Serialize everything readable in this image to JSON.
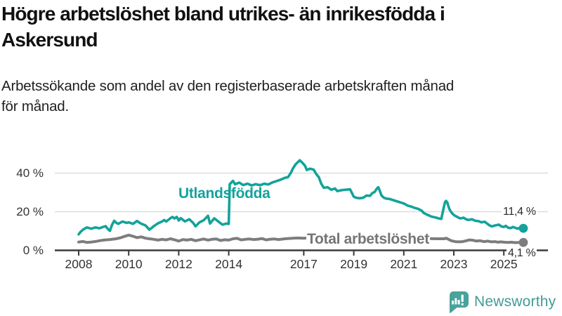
{
  "header": {
    "title": "Högre arbetslöshet bland utrikes- än inrikesfödda i\nAskersund",
    "subtitle": "Arbetssökande som andel av den registerbaserade arbetskraften månad\nför månad."
  },
  "footer": {
    "brand": "Newsworthy",
    "logo_icon": "bar-chart-speech-bubble-icon"
  },
  "colors": {
    "series_foreign": "#13a39a",
    "series_total": "#7d7d7d",
    "axis": "#3a3a3a",
    "grid": "#dcdcdc",
    "brand_teal": "#4aa29b"
  },
  "chart_data": {
    "type": "line",
    "title": "Högre arbetslöshet bland utrikes- än inrikesfödda i Askersund",
    "subtitle": "Arbetssökande som andel av den registerbaserade arbetskraften månad för månad.",
    "unit": "%",
    "grid": "horizontal-only",
    "legend_position": "inline-labels",
    "x_axis": {
      "ticks": [
        2008,
        2010,
        2012,
        2014,
        2017,
        2019,
        2021,
        2023,
        2025
      ],
      "tick_labels": [
        "2008",
        "2010",
        "2012",
        "2014",
        "2017",
        "2019",
        "2021",
        "2023",
        "2025"
      ],
      "range": [
        2007.1,
        2026.8
      ]
    },
    "y_axis": {
      "ticks": [
        0,
        20,
        40
      ],
      "tick_labels": [
        "0 %",
        "20 %",
        "40 %"
      ],
      "range": [
        0,
        51
      ]
    },
    "series": [
      {
        "name": "Utlandsfödda",
        "color": "#13a39a",
        "end_label": "11,4 %",
        "end_value": 11.4,
        "points": [
          [
            2008.0,
            8.3
          ],
          [
            2008.08,
            9.6
          ],
          [
            2008.17,
            10.7
          ],
          [
            2008.33,
            11.9
          ],
          [
            2008.5,
            11.2
          ],
          [
            2008.67,
            11.9
          ],
          [
            2008.83,
            11.4
          ],
          [
            2009.0,
            12.2
          ],
          [
            2009.08,
            12.5
          ],
          [
            2009.17,
            11.0
          ],
          [
            2009.25,
            10.1
          ],
          [
            2009.33,
            13.1
          ],
          [
            2009.42,
            15.3
          ],
          [
            2009.5,
            14.3
          ],
          [
            2009.58,
            13.7
          ],
          [
            2009.75,
            14.9
          ],
          [
            2009.92,
            14.2
          ],
          [
            2010.0,
            14.5
          ],
          [
            2010.17,
            13.7
          ],
          [
            2010.33,
            15.2
          ],
          [
            2010.5,
            13.8
          ],
          [
            2010.67,
            12.9
          ],
          [
            2010.83,
            10.7
          ],
          [
            2010.92,
            11.6
          ],
          [
            2011.0,
            12.5
          ],
          [
            2011.17,
            14.0
          ],
          [
            2011.33,
            14.9
          ],
          [
            2011.42,
            15.7
          ],
          [
            2011.5,
            14.9
          ],
          [
            2011.67,
            16.7
          ],
          [
            2011.75,
            17.3
          ],
          [
            2011.83,
            16.5
          ],
          [
            2011.92,
            17.3
          ],
          [
            2012.0,
            15.5
          ],
          [
            2012.08,
            16.7
          ],
          [
            2012.25,
            15.0
          ],
          [
            2012.42,
            16.1
          ],
          [
            2012.58,
            14.2
          ],
          [
            2012.67,
            12.4
          ],
          [
            2012.83,
            14.5
          ],
          [
            2013.0,
            15.6
          ],
          [
            2013.17,
            17.9
          ],
          [
            2013.25,
            13.9
          ],
          [
            2013.42,
            16.6
          ],
          [
            2013.58,
            15.0
          ],
          [
            2013.75,
            13.3
          ],
          [
            2013.92,
            13.9
          ],
          [
            2014.0,
            13.7
          ],
          [
            2014.04,
            34.2
          ],
          [
            2014.17,
            36.0
          ],
          [
            2014.25,
            34.2
          ],
          [
            2014.42,
            35.1
          ],
          [
            2014.58,
            33.8
          ],
          [
            2014.75,
            34.5
          ],
          [
            2014.92,
            33.6
          ],
          [
            2015.08,
            34.3
          ],
          [
            2015.25,
            33.7
          ],
          [
            2015.42,
            34.5
          ],
          [
            2015.58,
            34.1
          ],
          [
            2015.75,
            35.2
          ],
          [
            2015.92,
            35.9
          ],
          [
            2016.08,
            36.6
          ],
          [
            2016.25,
            37.6
          ],
          [
            2016.37,
            37.9
          ],
          [
            2016.5,
            40.5
          ],
          [
            2016.56,
            42.2
          ],
          [
            2016.67,
            44.5
          ],
          [
            2016.84,
            46.6
          ],
          [
            2016.95,
            45.3
          ],
          [
            2017.05,
            43.8
          ],
          [
            2017.12,
            41.6
          ],
          [
            2017.25,
            42.3
          ],
          [
            2017.4,
            41.8
          ],
          [
            2017.5,
            39.5
          ],
          [
            2017.6,
            37.9
          ],
          [
            2017.7,
            34.5
          ],
          [
            2017.8,
            32.4
          ],
          [
            2017.95,
            32.7
          ],
          [
            2018.1,
            31.4
          ],
          [
            2018.25,
            32.0
          ],
          [
            2018.34,
            30.7
          ],
          [
            2018.53,
            31.2
          ],
          [
            2018.71,
            31.4
          ],
          [
            2018.85,
            31.6
          ],
          [
            2019.0,
            27.8
          ],
          [
            2019.1,
            27.2
          ],
          [
            2019.23,
            27.0
          ],
          [
            2019.37,
            27.2
          ],
          [
            2019.51,
            28.4
          ],
          [
            2019.65,
            28.2
          ],
          [
            2019.74,
            29.6
          ],
          [
            2019.84,
            30.3
          ],
          [
            2019.93,
            32.1
          ],
          [
            2019.98,
            32.7
          ],
          [
            2020.02,
            31.5
          ],
          [
            2020.11,
            28.4
          ],
          [
            2020.21,
            27.2
          ],
          [
            2020.3,
            26.8
          ],
          [
            2020.44,
            26.6
          ],
          [
            2020.58,
            26.0
          ],
          [
            2020.72,
            25.4
          ],
          [
            2020.87,
            24.8
          ],
          [
            2021.01,
            24.2
          ],
          [
            2021.15,
            23.2
          ],
          [
            2021.29,
            22.7
          ],
          [
            2021.43,
            22.0
          ],
          [
            2021.57,
            21.5
          ],
          [
            2021.71,
            20.6
          ],
          [
            2021.8,
            19.3
          ],
          [
            2021.9,
            18.7
          ],
          [
            2022.0,
            18.1
          ],
          [
            2022.1,
            17.5
          ],
          [
            2022.3,
            16.9
          ],
          [
            2022.4,
            16.5
          ],
          [
            2022.5,
            16.3
          ],
          [
            2022.6,
            22.4
          ],
          [
            2022.65,
            25.0
          ],
          [
            2022.69,
            25.6
          ],
          [
            2022.74,
            24.8
          ],
          [
            2022.78,
            23.0
          ],
          [
            2022.83,
            21.2
          ],
          [
            2022.92,
            19.3
          ],
          [
            2023.02,
            18.1
          ],
          [
            2023.11,
            17.5
          ],
          [
            2023.25,
            16.5
          ],
          [
            2023.39,
            16.9
          ],
          [
            2023.49,
            16.1
          ],
          [
            2023.58,
            15.7
          ],
          [
            2023.72,
            16.1
          ],
          [
            2023.86,
            15.3
          ],
          [
            2024.0,
            15.1
          ],
          [
            2024.1,
            14.5
          ],
          [
            2024.24,
            14.8
          ],
          [
            2024.33,
            13.9
          ],
          [
            2024.43,
            12.9
          ],
          [
            2024.52,
            12.4
          ],
          [
            2024.66,
            12.9
          ],
          [
            2024.8,
            13.3
          ],
          [
            2024.9,
            12.4
          ],
          [
            2025.0,
            12.1
          ],
          [
            2025.08,
            12.7
          ],
          [
            2025.17,
            11.7
          ],
          [
            2025.27,
            11.5
          ],
          [
            2025.36,
            12.1
          ],
          [
            2025.45,
            11.7
          ],
          [
            2025.55,
            11.2
          ],
          [
            2025.64,
            11.7
          ],
          [
            2025.78,
            11.4
          ]
        ]
      },
      {
        "name": "Total arbetslöshet",
        "color": "#7d7d7d",
        "end_label": "4,1 %",
        "end_value": 4.1,
        "points": [
          [
            2008.0,
            4.3
          ],
          [
            2008.17,
            4.6
          ],
          [
            2008.33,
            4.1
          ],
          [
            2008.5,
            4.3
          ],
          [
            2008.67,
            4.6
          ],
          [
            2008.83,
            5.0
          ],
          [
            2009.0,
            5.3
          ],
          [
            2009.25,
            5.6
          ],
          [
            2009.5,
            6.0
          ],
          [
            2009.67,
            6.5
          ],
          [
            2009.83,
            7.2
          ],
          [
            2010.0,
            7.9
          ],
          [
            2010.17,
            7.3
          ],
          [
            2010.33,
            6.6
          ],
          [
            2010.5,
            7.0
          ],
          [
            2010.67,
            6.3
          ],
          [
            2010.83,
            6.0
          ],
          [
            2011.0,
            5.7
          ],
          [
            2011.17,
            5.3
          ],
          [
            2011.33,
            5.7
          ],
          [
            2011.5,
            5.4
          ],
          [
            2011.67,
            6.0
          ],
          [
            2011.83,
            5.5
          ],
          [
            2012.0,
            4.8
          ],
          [
            2012.17,
            5.6
          ],
          [
            2012.33,
            5.3
          ],
          [
            2012.5,
            5.7
          ],
          [
            2012.67,
            5.0
          ],
          [
            2012.83,
            5.4
          ],
          [
            2013.0,
            5.9
          ],
          [
            2013.17,
            5.3
          ],
          [
            2013.33,
            5.7
          ],
          [
            2013.5,
            5.9
          ],
          [
            2013.67,
            5.1
          ],
          [
            2013.83,
            5.5
          ],
          [
            2014.0,
            5.3
          ],
          [
            2014.17,
            6.0
          ],
          [
            2014.33,
            6.2
          ],
          [
            2014.5,
            5.4
          ],
          [
            2014.67,
            5.7
          ],
          [
            2014.83,
            5.9
          ],
          [
            2015.0,
            5.6
          ],
          [
            2015.17,
            5.8
          ],
          [
            2015.33,
            6.1
          ],
          [
            2015.5,
            5.4
          ],
          [
            2015.67,
            5.8
          ],
          [
            2015.83,
            5.9
          ],
          [
            2016.0,
            5.6
          ],
          [
            2016.25,
            6.0
          ],
          [
            2016.5,
            6.2
          ],
          [
            2016.75,
            6.4
          ],
          [
            2017.0,
            6.3
          ],
          [
            2017.33,
            6.6
          ],
          [
            2017.67,
            6.4
          ],
          [
            2018.0,
            6.5
          ],
          [
            2018.33,
            6.3
          ],
          [
            2018.67,
            6.4
          ],
          [
            2019.0,
            6.2
          ],
          [
            2019.33,
            6.4
          ],
          [
            2019.67,
            6.6
          ],
          [
            2020.0,
            6.8
          ],
          [
            2020.33,
            7.4
          ],
          [
            2020.67,
            7.2
          ],
          [
            2021.0,
            6.9
          ],
          [
            2021.33,
            6.6
          ],
          [
            2021.67,
            6.4
          ],
          [
            2022.0,
            6.1
          ],
          [
            2022.33,
            6.0
          ],
          [
            2022.6,
            6.0
          ],
          [
            2022.7,
            6.3
          ],
          [
            2022.8,
            5.6
          ],
          [
            2022.9,
            5.0
          ],
          [
            2023.06,
            4.5
          ],
          [
            2023.2,
            4.4
          ],
          [
            2023.35,
            4.5
          ],
          [
            2023.5,
            5.0
          ],
          [
            2023.63,
            5.4
          ],
          [
            2023.78,
            5.2
          ],
          [
            2023.9,
            4.8
          ],
          [
            2024.05,
            5.0
          ],
          [
            2024.2,
            4.5
          ],
          [
            2024.35,
            4.8
          ],
          [
            2024.5,
            4.4
          ],
          [
            2024.65,
            4.5
          ],
          [
            2024.76,
            4.2
          ],
          [
            2024.88,
            4.4
          ],
          [
            2025.0,
            4.2
          ],
          [
            2025.17,
            4.1
          ],
          [
            2025.3,
            4.2
          ],
          [
            2025.45,
            4.0
          ],
          [
            2025.6,
            4.1
          ],
          [
            2025.78,
            4.1
          ]
        ]
      }
    ]
  }
}
